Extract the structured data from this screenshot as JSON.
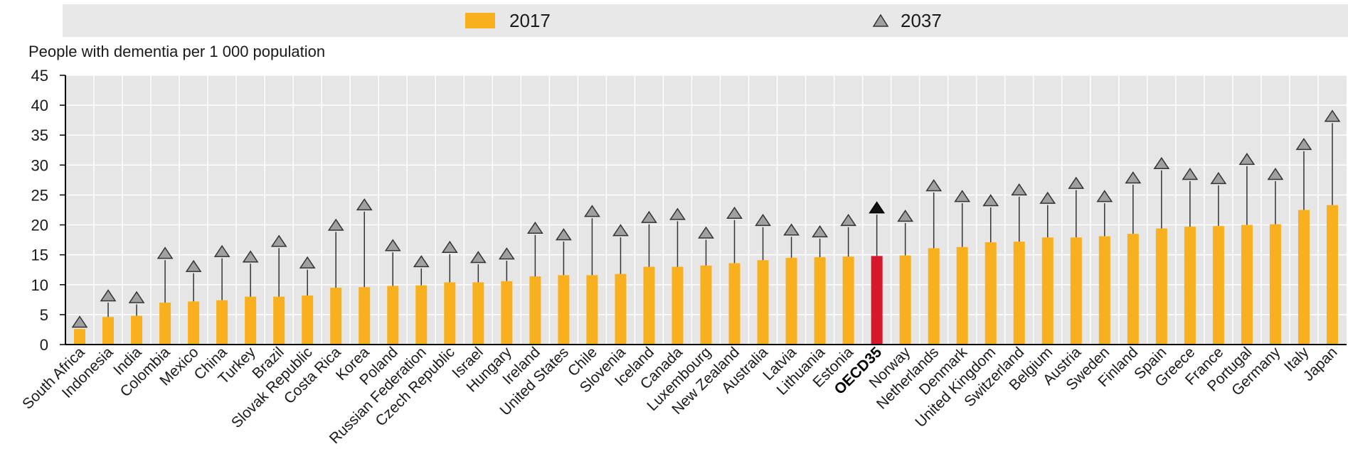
{
  "legend": {
    "items": [
      {
        "label": "2017",
        "color": "#F9B01F",
        "shape": "bar"
      },
      {
        "label": "2037",
        "color": "#A0A0A0",
        "shape": "triangle"
      }
    ]
  },
  "chart_data": {
    "type": "bar",
    "ylabel": "People with dementia per 1 000 population",
    "ylim": [
      0,
      45
    ],
    "yticks": [
      0,
      5,
      10,
      15,
      20,
      25,
      30,
      35,
      40,
      45
    ],
    "grid": true,
    "legend_position": "top",
    "highlight": {
      "category": "OECD35",
      "bar_color": "#D7182A",
      "marker_color": "#111111"
    },
    "categories": [
      "South Africa",
      "Indonesia",
      "India",
      "Colombia",
      "Mexico",
      "China",
      "Turkey",
      "Brazil",
      "Slovak Republic",
      "Costa Rica",
      "Korea",
      "Poland",
      "Russian Federation",
      "Czech Republic",
      "Israel",
      "Hungary",
      "Ireland",
      "United States",
      "Chile",
      "Slovenia",
      "Iceland",
      "Canada",
      "Luxembourg",
      "New Zealand",
      "Australia",
      "Latvia",
      "Lithuania",
      "Estonia",
      "OECD35",
      "Norway",
      "Netherlands",
      "Denmark",
      "United Kingdom",
      "Switzerland",
      "Belgium",
      "Austria",
      "Sweden",
      "Finland",
      "Spain",
      "Greece",
      "France",
      "Portugal",
      "Germany",
      "Italy",
      "Japan"
    ],
    "series": [
      {
        "name": "2017",
        "color": "#F9B01F",
        "values": [
          2.6,
          4.6,
          4.8,
          7.0,
          7.2,
          7.4,
          8.0,
          8.0,
          8.2,
          9.5,
          9.6,
          9.8,
          9.9,
          10.4,
          10.4,
          10.6,
          11.4,
          11.6,
          11.6,
          11.8,
          13.0,
          13.0,
          13.2,
          13.6,
          14.1,
          14.5,
          14.6,
          14.7,
          14.8,
          14.9,
          16.1,
          16.3,
          17.1,
          17.2,
          17.9,
          17.9,
          18.1,
          18.5,
          19.4,
          19.7,
          19.8,
          20.0,
          20.1,
          22.5,
          23.3
        ]
      },
      {
        "name": "2037",
        "color": "#A0A0A0",
        "values": [
          3.8,
          8.2,
          7.9,
          15.3,
          13.1,
          15.6,
          14.7,
          17.3,
          13.7,
          20.0,
          23.4,
          16.6,
          13.9,
          16.3,
          14.6,
          15.2,
          19.5,
          18.4,
          22.3,
          19.1,
          21.3,
          21.8,
          18.7,
          22.0,
          20.8,
          19.2,
          18.9,
          20.8,
          22.9,
          21.5,
          26.6,
          24.8,
          24.1,
          25.9,
          24.5,
          27.0,
          24.8,
          27.9,
          30.3,
          28.5,
          27.8,
          31.0,
          28.5,
          33.5,
          38.2
        ]
      }
    ]
  }
}
